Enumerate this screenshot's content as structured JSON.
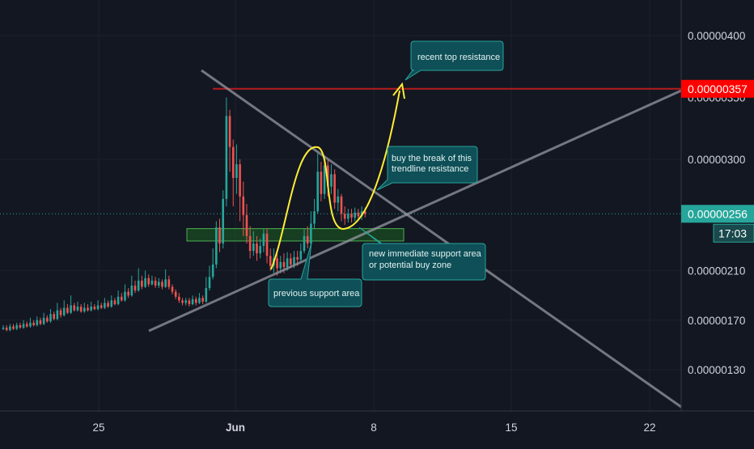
{
  "chart_data": {
    "type": "candlestick",
    "x_ticks": [
      "25",
      "Jun",
      "8",
      "15",
      "22"
    ],
    "y_ticks": [
      "0.00000400",
      "0.00000300",
      "0.00000210",
      "0.00000170",
      "0.00000130"
    ],
    "ylim": [
      1.1e-06,
      4.4e-06
    ],
    "current_price": "0.00000256",
    "countdown": "17:03",
    "resistance_price": "0.00000357",
    "resistance_hidden_tick": "0.00000350",
    "support_zone": [
      2.34e-06,
      2.44e-06
    ],
    "candles": [
      {
        "o": 163,
        "c": 164,
        "h": 166,
        "l": 162
      },
      {
        "o": 164,
        "c": 162,
        "h": 166,
        "l": 161
      },
      {
        "o": 162,
        "c": 165,
        "h": 167,
        "l": 161
      },
      {
        "o": 165,
        "c": 163,
        "h": 167,
        "l": 162
      },
      {
        "o": 163,
        "c": 166,
        "h": 168,
        "l": 162
      },
      {
        "o": 166,
        "c": 164,
        "h": 168,
        "l": 163
      },
      {
        "o": 164,
        "c": 167,
        "h": 170,
        "l": 163
      },
      {
        "o": 167,
        "c": 165,
        "h": 169,
        "l": 164
      },
      {
        "o": 165,
        "c": 168,
        "h": 172,
        "l": 164
      },
      {
        "o": 168,
        "c": 166,
        "h": 170,
        "l": 165
      },
      {
        "o": 166,
        "c": 170,
        "h": 173,
        "l": 165
      },
      {
        "o": 170,
        "c": 167,
        "h": 172,
        "l": 166
      },
      {
        "o": 167,
        "c": 172,
        "h": 176,
        "l": 166
      },
      {
        "o": 172,
        "c": 169,
        "h": 174,
        "l": 168
      },
      {
        "o": 169,
        "c": 175,
        "h": 179,
        "l": 168
      },
      {
        "o": 175,
        "c": 171,
        "h": 177,
        "l": 170
      },
      {
        "o": 171,
        "c": 178,
        "h": 184,
        "l": 170
      },
      {
        "o": 178,
        "c": 174,
        "h": 180,
        "l": 172
      },
      {
        "o": 174,
        "c": 180,
        "h": 186,
        "l": 173
      },
      {
        "o": 180,
        "c": 176,
        "h": 183,
        "l": 175
      },
      {
        "o": 176,
        "c": 182,
        "h": 190,
        "l": 175
      },
      {
        "o": 182,
        "c": 178,
        "h": 184,
        "l": 177
      },
      {
        "o": 178,
        "c": 181,
        "h": 185,
        "l": 177
      },
      {
        "o": 181,
        "c": 177,
        "h": 183,
        "l": 176
      },
      {
        "o": 177,
        "c": 180,
        "h": 184,
        "l": 176
      },
      {
        "o": 180,
        "c": 178,
        "h": 183,
        "l": 177
      },
      {
        "o": 178,
        "c": 181,
        "h": 185,
        "l": 177
      },
      {
        "o": 181,
        "c": 179,
        "h": 183,
        "l": 178
      },
      {
        "o": 179,
        "c": 182,
        "h": 186,
        "l": 178
      },
      {
        "o": 182,
        "c": 180,
        "h": 184,
        "l": 179
      },
      {
        "o": 180,
        "c": 184,
        "h": 188,
        "l": 179
      },
      {
        "o": 184,
        "c": 181,
        "h": 186,
        "l": 180
      },
      {
        "o": 181,
        "c": 186,
        "h": 190,
        "l": 180
      },
      {
        "o": 186,
        "c": 183,
        "h": 188,
        "l": 182
      },
      {
        "o": 183,
        "c": 189,
        "h": 194,
        "l": 182
      },
      {
        "o": 189,
        "c": 186,
        "h": 192,
        "l": 185
      },
      {
        "o": 186,
        "c": 193,
        "h": 199,
        "l": 185
      },
      {
        "o": 193,
        "c": 190,
        "h": 196,
        "l": 188
      },
      {
        "o": 190,
        "c": 198,
        "h": 206,
        "l": 189
      },
      {
        "o": 198,
        "c": 194,
        "h": 202,
        "l": 192
      },
      {
        "o": 194,
        "c": 202,
        "h": 212,
        "l": 193
      },
      {
        "o": 202,
        "c": 197,
        "h": 206,
        "l": 195
      },
      {
        "o": 197,
        "c": 204,
        "h": 210,
        "l": 196
      },
      {
        "o": 204,
        "c": 199,
        "h": 207,
        "l": 197
      },
      {
        "o": 199,
        "c": 202,
        "h": 206,
        "l": 198
      },
      {
        "o": 202,
        "c": 198,
        "h": 205,
        "l": 196
      },
      {
        "o": 198,
        "c": 201,
        "h": 204,
        "l": 196
      },
      {
        "o": 201,
        "c": 197,
        "h": 203,
        "l": 195
      },
      {
        "o": 197,
        "c": 203,
        "h": 211,
        "l": 196
      },
      {
        "o": 203,
        "c": 197,
        "h": 206,
        "l": 195
      },
      {
        "o": 197,
        "c": 193,
        "h": 199,
        "l": 191
      },
      {
        "o": 193,
        "c": 189,
        "h": 195,
        "l": 187
      },
      {
        "o": 189,
        "c": 186,
        "h": 192,
        "l": 184
      },
      {
        "o": 186,
        "c": 184,
        "h": 188,
        "l": 182
      },
      {
        "o": 184,
        "c": 186,
        "h": 188,
        "l": 182
      },
      {
        "o": 186,
        "c": 183,
        "h": 188,
        "l": 181
      },
      {
        "o": 183,
        "c": 187,
        "h": 190,
        "l": 182
      },
      {
        "o": 187,
        "c": 184,
        "h": 189,
        "l": 182
      },
      {
        "o": 184,
        "c": 188,
        "h": 192,
        "l": 183
      },
      {
        "o": 188,
        "c": 185,
        "h": 190,
        "l": 183
      },
      {
        "o": 185,
        "c": 196,
        "h": 205,
        "l": 184
      },
      {
        "o": 196,
        "c": 205,
        "h": 214,
        "l": 194
      },
      {
        "o": 205,
        "c": 215,
        "h": 228,
        "l": 203
      },
      {
        "o": 215,
        "c": 245,
        "h": 250,
        "l": 212
      },
      {
        "o": 245,
        "c": 232,
        "h": 252,
        "l": 225
      },
      {
        "o": 232,
        "c": 268,
        "h": 275,
        "l": 228
      },
      {
        "o": 268,
        "c": 335,
        "h": 350,
        "l": 262
      },
      {
        "o": 335,
        "c": 310,
        "h": 340,
        "l": 290
      },
      {
        "o": 310,
        "c": 285,
        "h": 316,
        "l": 262
      },
      {
        "o": 285,
        "c": 296,
        "h": 312,
        "l": 272
      },
      {
        "o": 296,
        "c": 270,
        "h": 300,
        "l": 250
      },
      {
        "o": 270,
        "c": 255,
        "h": 282,
        "l": 238
      },
      {
        "o": 255,
        "c": 238,
        "h": 264,
        "l": 232
      },
      {
        "o": 238,
        "c": 226,
        "h": 246,
        "l": 220
      },
      {
        "o": 226,
        "c": 232,
        "h": 242,
        "l": 222
      },
      {
        "o": 232,
        "c": 224,
        "h": 238,
        "l": 218
      },
      {
        "o": 224,
        "c": 230,
        "h": 236,
        "l": 220
      },
      {
        "o": 230,
        "c": 240,
        "h": 244,
        "l": 225
      },
      {
        "o": 240,
        "c": 222,
        "h": 244,
        "l": 216
      },
      {
        "o": 222,
        "c": 214,
        "h": 228,
        "l": 210
      },
      {
        "o": 214,
        "c": 220,
        "h": 228,
        "l": 208
      },
      {
        "o": 220,
        "c": 212,
        "h": 226,
        "l": 206
      },
      {
        "o": 212,
        "c": 217,
        "h": 222,
        "l": 208
      },
      {
        "o": 217,
        "c": 213,
        "h": 224,
        "l": 208
      },
      {
        "o": 213,
        "c": 220,
        "h": 225,
        "l": 210
      },
      {
        "o": 220,
        "c": 215,
        "h": 224,
        "l": 212
      },
      {
        "o": 215,
        "c": 221,
        "h": 226,
        "l": 212
      },
      {
        "o": 221,
        "c": 219,
        "h": 226,
        "l": 214
      },
      {
        "o": 219,
        "c": 226,
        "h": 232,
        "l": 217
      },
      {
        "o": 226,
        "c": 238,
        "h": 244,
        "l": 224
      },
      {
        "o": 238,
        "c": 232,
        "h": 246,
        "l": 228
      },
      {
        "o": 232,
        "c": 248,
        "h": 258,
        "l": 230
      },
      {
        "o": 248,
        "c": 258,
        "h": 268,
        "l": 244
      },
      {
        "o": 258,
        "c": 290,
        "h": 305,
        "l": 256
      },
      {
        "o": 290,
        "c": 272,
        "h": 298,
        "l": 266
      },
      {
        "o": 272,
        "c": 295,
        "h": 302,
        "l": 268
      },
      {
        "o": 295,
        "c": 278,
        "h": 300,
        "l": 270
      },
      {
        "o": 278,
        "c": 288,
        "h": 296,
        "l": 272
      },
      {
        "o": 288,
        "c": 265,
        "h": 292,
        "l": 260
      },
      {
        "o": 265,
        "c": 270,
        "h": 276,
        "l": 258
      },
      {
        "o": 270,
        "c": 256,
        "h": 272,
        "l": 250
      },
      {
        "o": 256,
        "c": 252,
        "h": 262,
        "l": 247
      },
      {
        "o": 252,
        "c": 256,
        "h": 260,
        "l": 249
      },
      {
        "o": 256,
        "c": 253,
        "h": 260,
        "l": 249
      },
      {
        "o": 253,
        "c": 257,
        "h": 261,
        "l": 250
      },
      {
        "o": 257,
        "c": 254,
        "h": 260,
        "l": 250
      },
      {
        "o": 254,
        "c": 258,
        "h": 262,
        "l": 251
      },
      {
        "o": 258,
        "c": 256,
        "h": 261,
        "l": 253
      }
    ],
    "annotations": {
      "recent_top": "recent top resistance",
      "buy_break_1": "buy the break of this",
      "buy_break_2": "trendline resistance",
      "new_support_1": "new immediate support area",
      "new_support_2": "or potential buy zone",
      "prev_support": "previous support area"
    },
    "colors": {
      "background": "#131722",
      "up": "#26a69a",
      "down": "#ef5350",
      "resistance": "#b71c1c",
      "resistance_label": "#ff0000",
      "current_price": "#26a69a",
      "trendline": "#9598a1",
      "projection": "#ffee33",
      "support_zone": "#1b5e20"
    }
  }
}
